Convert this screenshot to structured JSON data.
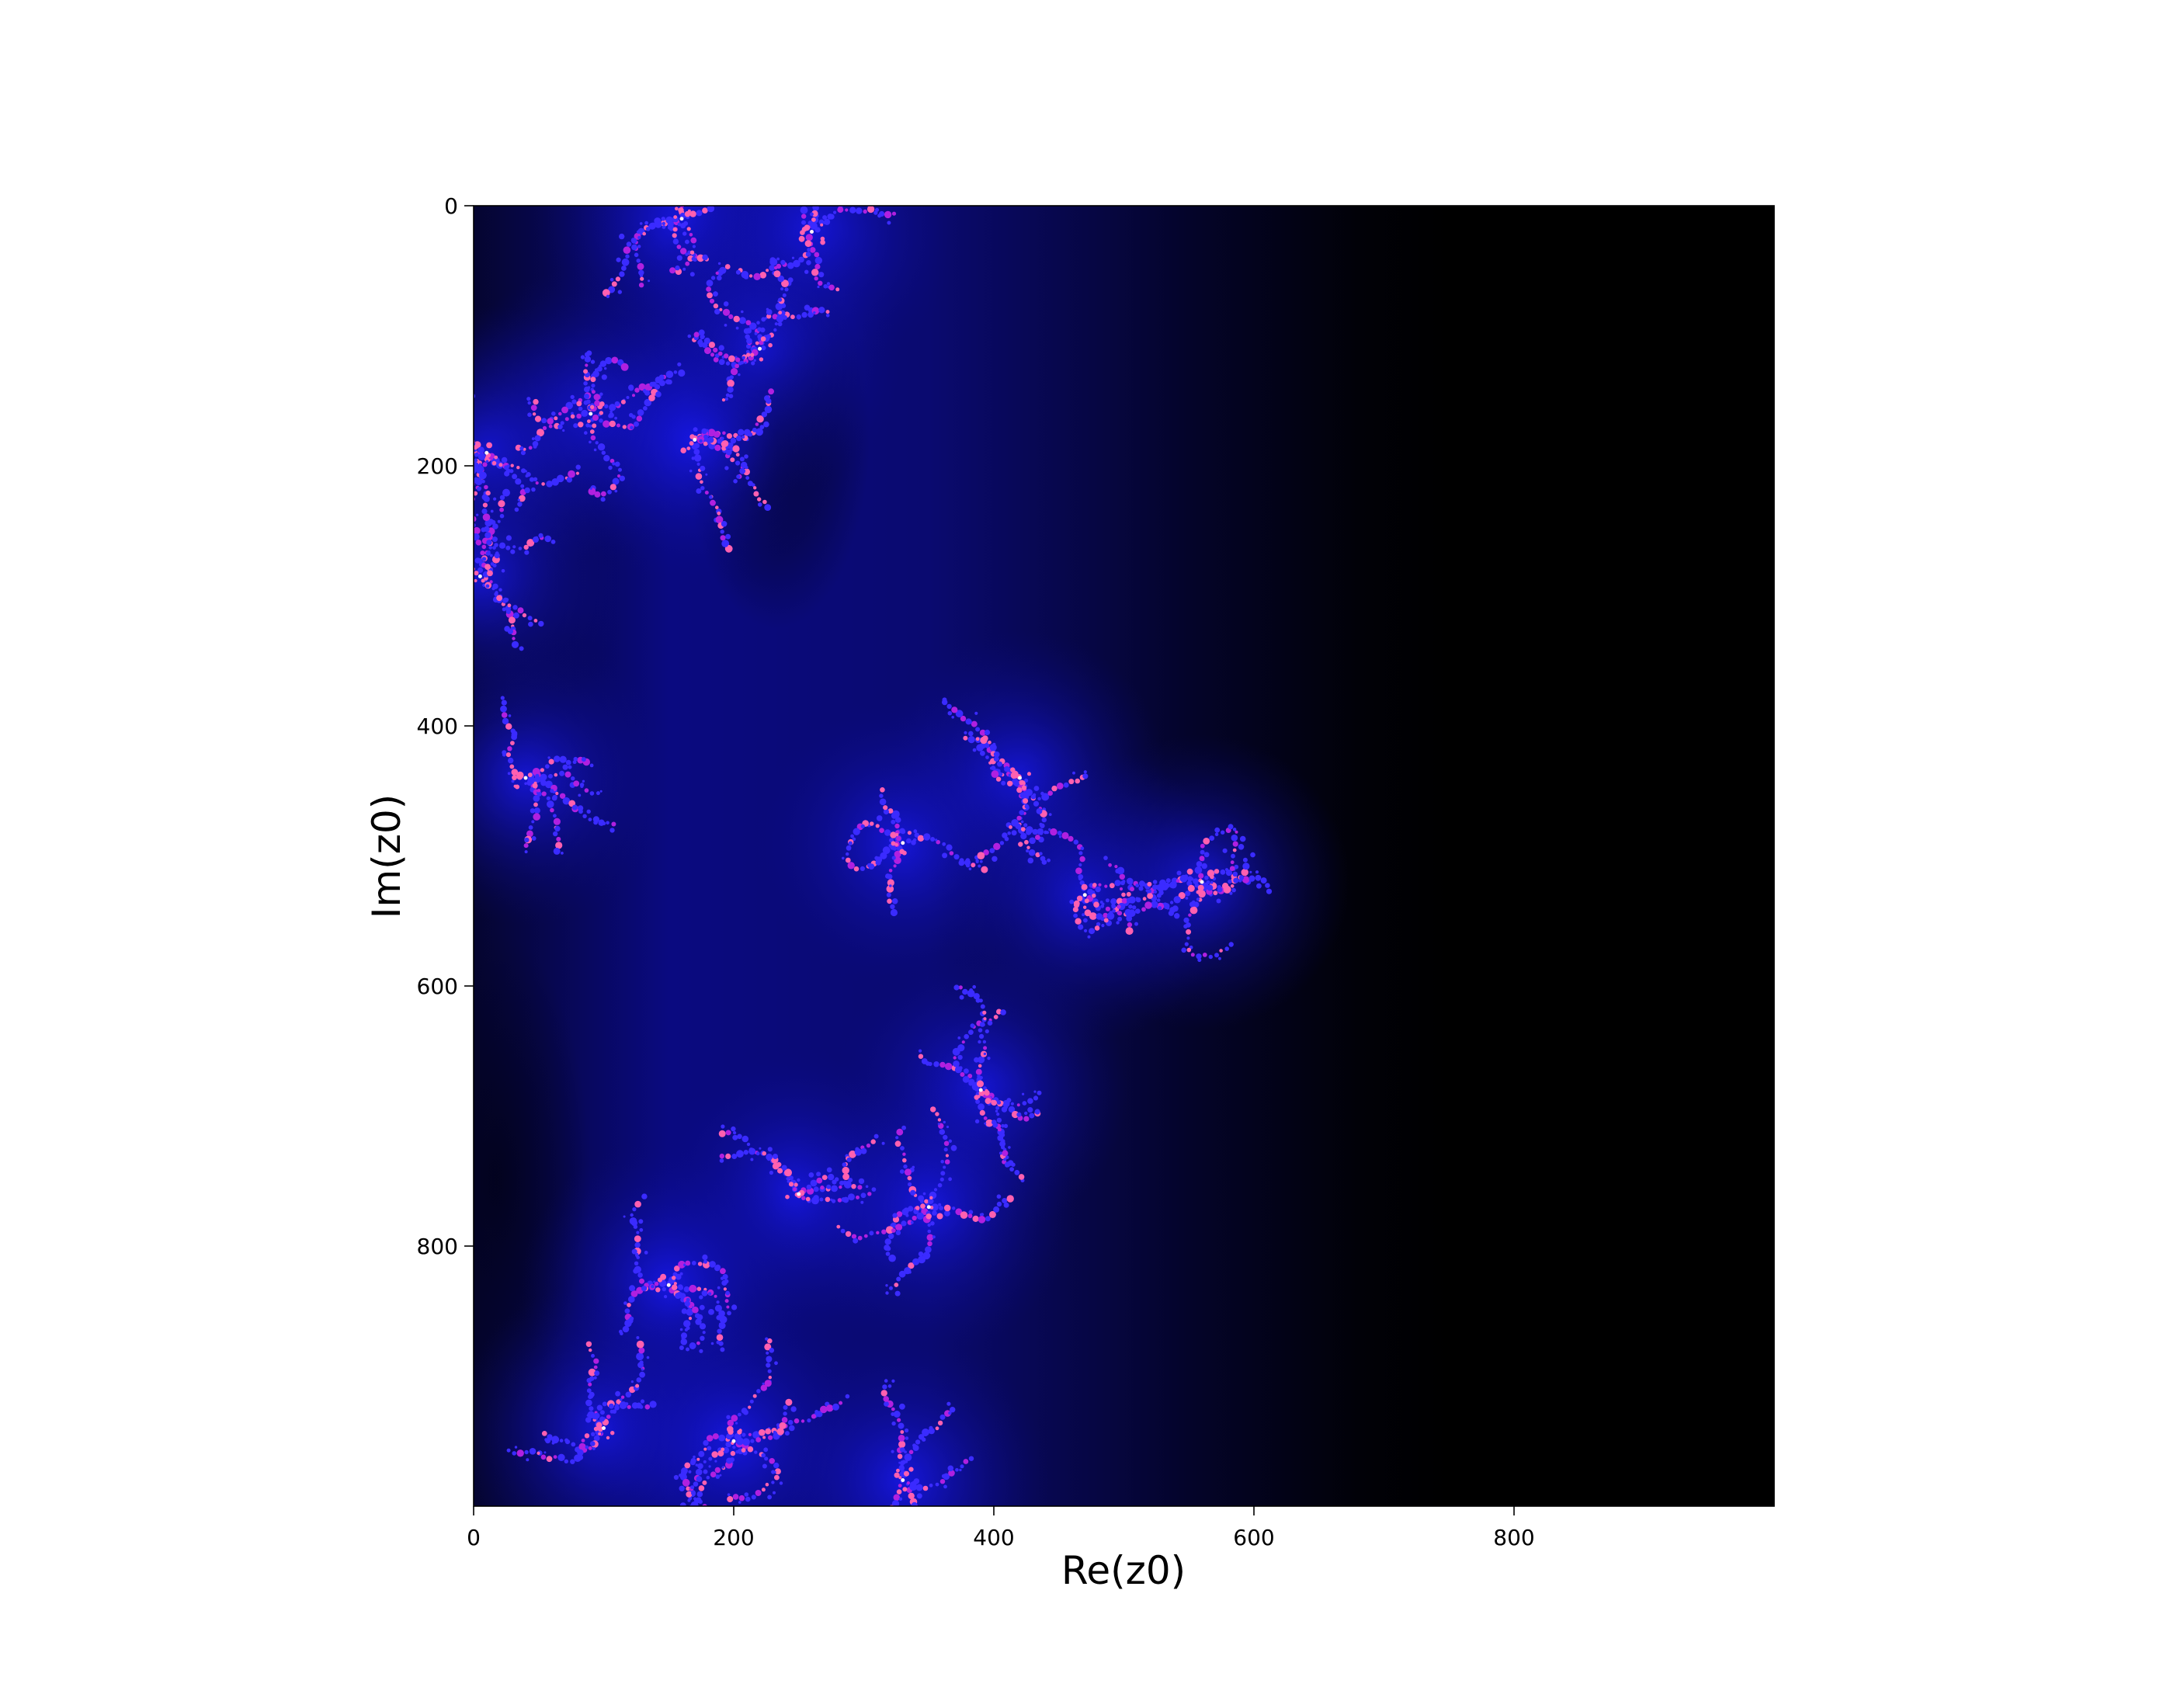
{
  "chart_data": {
    "type": "heatmap",
    "title": "",
    "xlabel": "Re(z0)",
    "ylabel": "Im(z0)",
    "xlim": [
      0,
      1000
    ],
    "ylim": [
      1000,
      0
    ],
    "x_ticks": [
      "0",
      "200",
      "400",
      "600",
      "800"
    ],
    "x_tick_values": [
      0,
      200,
      400,
      600,
      800
    ],
    "y_ticks": [
      "0",
      "200",
      "400",
      "600",
      "800"
    ],
    "y_tick_values": [
      0,
      200,
      400,
      600,
      800
    ],
    "grid": false,
    "colormap": [
      "#000000",
      "#0a0a55",
      "#1a1aff",
      "#6a1aff",
      "#ff3aa0",
      "#ffe0f0"
    ],
    "colors": {
      "background": "#000000",
      "glow": "#1010d0",
      "fractal_outer": "#3a2bff",
      "fractal_mid": "#b020e0",
      "fractal_core": "#ff60b0",
      "fractal_hot": "#fff0f8"
    },
    "clusters": [
      {
        "x": 160,
        "y": 10
      },
      {
        "x": 260,
        "y": 20
      },
      {
        "x": 220,
        "y": 110
      },
      {
        "x": 90,
        "y": 160
      },
      {
        "x": 170,
        "y": 180
      },
      {
        "x": 10,
        "y": 190
      },
      {
        "x": 5,
        "y": 285
      },
      {
        "x": 40,
        "y": 440
      },
      {
        "x": 330,
        "y": 490
      },
      {
        "x": 420,
        "y": 440
      },
      {
        "x": 470,
        "y": 530
      },
      {
        "x": 560,
        "y": 520
      },
      {
        "x": 390,
        "y": 680
      },
      {
        "x": 250,
        "y": 760
      },
      {
        "x": 350,
        "y": 770
      },
      {
        "x": 150,
        "y": 830
      },
      {
        "x": 100,
        "y": 940
      },
      {
        "x": 200,
        "y": 950
      },
      {
        "x": 330,
        "y": 980
      }
    ]
  }
}
